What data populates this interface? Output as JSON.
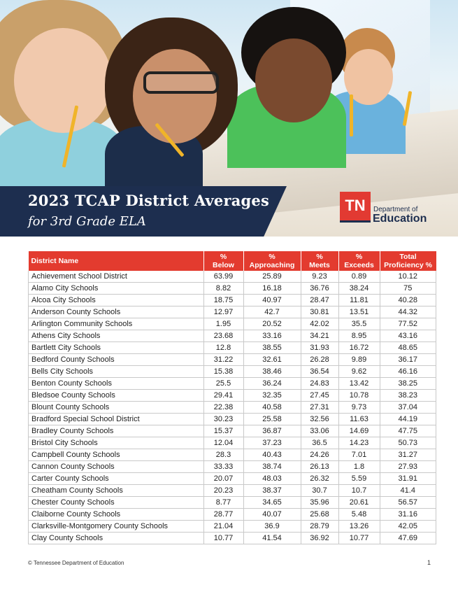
{
  "title": "2023 TCAP District Averages",
  "subtitle": "for 3rd Grade ELA",
  "logo": {
    "mark": "TN",
    "dept": "Department of",
    "org": "Education"
  },
  "table": {
    "headers": [
      "District Name",
      "% Below",
      "% Approaching",
      "% Meets",
      "% Exceeds",
      "Total Proficiency %"
    ],
    "header_lines": [
      [
        "District Name"
      ],
      [
        "%",
        "Below"
      ],
      [
        "%",
        "Approaching"
      ],
      [
        "%",
        "Meets"
      ],
      [
        "%",
        "Exceeds"
      ],
      [
        "Total",
        "Proficiency %"
      ]
    ],
    "rows": [
      [
        "Achievement School District",
        "63.99",
        "25.89",
        "9.23",
        "0.89",
        "10.12"
      ],
      [
        "Alamo City Schools",
        "8.82",
        "16.18",
        "36.76",
        "38.24",
        "75"
      ],
      [
        "Alcoa City Schools",
        "18.75",
        "40.97",
        "28.47",
        "11.81",
        "40.28"
      ],
      [
        "Anderson County Schools",
        "12.97",
        "42.7",
        "30.81",
        "13.51",
        "44.32"
      ],
      [
        "Arlington Community Schools",
        "1.95",
        "20.52",
        "42.02",
        "35.5",
        "77.52"
      ],
      [
        "Athens City Schools",
        "23.68",
        "33.16",
        "34.21",
        "8.95",
        "43.16"
      ],
      [
        "Bartlett City Schools",
        "12.8",
        "38.55",
        "31.93",
        "16.72",
        "48.65"
      ],
      [
        "Bedford County Schools",
        "31.22",
        "32.61",
        "26.28",
        "9.89",
        "36.17"
      ],
      [
        "Bells City Schools",
        "15.38",
        "38.46",
        "36.54",
        "9.62",
        "46.16"
      ],
      [
        "Benton County Schools",
        "25.5",
        "36.24",
        "24.83",
        "13.42",
        "38.25"
      ],
      [
        "Bledsoe County Schools",
        "29.41",
        "32.35",
        "27.45",
        "10.78",
        "38.23"
      ],
      [
        "Blount County Schools",
        "22.38",
        "40.58",
        "27.31",
        "9.73",
        "37.04"
      ],
      [
        "Bradford Special School District",
        "30.23",
        "25.58",
        "32.56",
        "11.63",
        "44.19"
      ],
      [
        "Bradley County Schools",
        "15.37",
        "36.87",
        "33.06",
        "14.69",
        "47.75"
      ],
      [
        "Bristol City Schools",
        "12.04",
        "37.23",
        "36.5",
        "14.23",
        "50.73"
      ],
      [
        "Campbell County Schools",
        "28.3",
        "40.43",
        "24.26",
        "7.01",
        "31.27"
      ],
      [
        "Cannon County Schools",
        "33.33",
        "38.74",
        "26.13",
        "1.8",
        "27.93"
      ],
      [
        "Carter County Schools",
        "20.07",
        "48.03",
        "26.32",
        "5.59",
        "31.91"
      ],
      [
        "Cheatham County Schools",
        "20.23",
        "38.37",
        "30.7",
        "10.7",
        "41.4"
      ],
      [
        "Chester County Schools",
        "8.77",
        "34.65",
        "35.96",
        "20.61",
        "56.57"
      ],
      [
        "Claiborne County Schools",
        "28.77",
        "40.07",
        "25.68",
        "5.48",
        "31.16"
      ],
      [
        "Clarksville-Montgomery County Schools",
        "21.04",
        "36.9",
        "28.79",
        "13.26",
        "42.05"
      ],
      [
        "Clay County Schools",
        "10.77",
        "41.54",
        "36.92",
        "10.77",
        "47.69"
      ]
    ]
  },
  "footer": "© Tennessee Department of Education",
  "page_number": "1",
  "colors": {
    "header_red": "#e33b2f",
    "banner_navy": "#1d2e4f",
    "logo_red": "#e23a32"
  }
}
